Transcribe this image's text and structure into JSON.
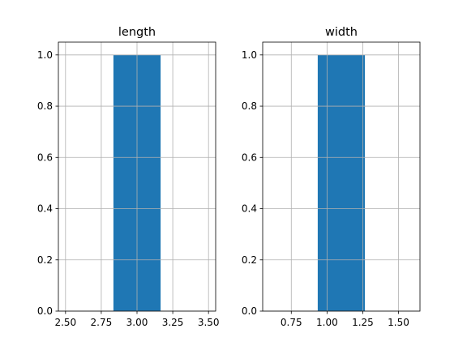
{
  "chart_data": [
    {
      "type": "bar",
      "title": "length",
      "xlabel": "",
      "ylabel": "",
      "xlim": [
        2.45,
        3.55
      ],
      "ylim": [
        0,
        1.05
      ],
      "grid": true,
      "bars": [
        {
          "x_start": 2.835,
          "x_end": 3.165,
          "value": 1.0
        }
      ],
      "xticks": [
        2.5,
        2.75,
        3.0,
        3.25,
        3.5
      ],
      "xtick_labels": [
        "2.50",
        "2.75",
        "3.00",
        "3.25",
        "3.50"
      ],
      "yticks": [
        0,
        0.2,
        0.4,
        0.6,
        0.8,
        1.0
      ],
      "ytick_labels": [
        "0.0",
        "0.2",
        "0.4",
        "0.6",
        "0.8",
        "1.0"
      ],
      "color": "#1f77b4"
    },
    {
      "type": "bar",
      "title": "width",
      "xlabel": "",
      "ylabel": "",
      "xlim": [
        0.55,
        1.65
      ],
      "ylim": [
        0,
        1.05
      ],
      "grid": true,
      "bars": [
        {
          "x_start": 0.935,
          "x_end": 1.265,
          "value": 1.0
        }
      ],
      "xticks": [
        0.75,
        1.0,
        1.25,
        1.5
      ],
      "xtick_labels": [
        "0.75",
        "1.00",
        "1.25",
        "1.50"
      ],
      "yticks": [
        0,
        0.2,
        0.4,
        0.6,
        0.8,
        1.0
      ],
      "ytick_labels": [
        "0.0",
        "0.2",
        "0.4",
        "0.6",
        "0.8",
        "1.0"
      ],
      "color": "#1f77b4"
    }
  ]
}
